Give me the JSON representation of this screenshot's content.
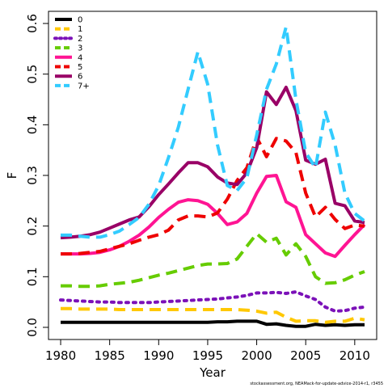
{
  "footer_text": "stockassessment.org, NEAMack-for-update-advice-2014-r1, r3455",
  "chart_data": {
    "type": "line",
    "title": "",
    "xlabel": "Year",
    "ylabel": "F",
    "xlim": [
      1980,
      2011
    ],
    "ylim": [
      0,
      0.6
    ],
    "x_ticks": [
      1980,
      1985,
      1990,
      1995,
      2000,
      2005,
      2010
    ],
    "y_ticks": [
      0.0,
      0.1,
      0.2,
      0.3,
      0.4,
      0.5,
      0.6
    ],
    "x_tick_labels": [
      "1980",
      "1985",
      "1990",
      "1995",
      "2000",
      "2005",
      "2010"
    ],
    "y_tick_labels": [
      "0.0",
      "0.1",
      "0.2",
      "0.3",
      "0.4",
      "0.5",
      "0.6"
    ],
    "grid": false,
    "legend_position": "top-left",
    "x": [
      1980,
      1981,
      1982,
      1983,
      1984,
      1985,
      1986,
      1987,
      1988,
      1989,
      1990,
      1991,
      1992,
      1993,
      1994,
      1995,
      1996,
      1997,
      1998,
      1999,
      2000,
      2001,
      2002,
      2003,
      2004,
      2005,
      2006,
      2007,
      2008,
      2009,
      2010,
      2011
    ],
    "series": [
      {
        "name": "0",
        "color": "#000000",
        "dash": "solid",
        "values": [
          0.01,
          0.01,
          0.01,
          0.01,
          0.01,
          0.01,
          0.01,
          0.01,
          0.01,
          0.01,
          0.01,
          0.01,
          0.01,
          0.01,
          0.01,
          0.01,
          0.011,
          0.011,
          0.012,
          0.012,
          0.012,
          0.006,
          0.007,
          0.004,
          0.002,
          0.002,
          0.006,
          0.004,
          0.005,
          0.004,
          0.005,
          0.005
        ]
      },
      {
        "name": "1",
        "color": "#ffc800",
        "dash": "dashed",
        "values": [
          0.037,
          0.037,
          0.036,
          0.036,
          0.036,
          0.036,
          0.035,
          0.035,
          0.035,
          0.035,
          0.035,
          0.035,
          0.035,
          0.035,
          0.035,
          0.035,
          0.035,
          0.035,
          0.035,
          0.034,
          0.032,
          0.028,
          0.03,
          0.02,
          0.012,
          0.013,
          0.013,
          0.01,
          0.012,
          0.012,
          0.018,
          0.015
        ]
      },
      {
        "name": "2",
        "color": "#7b11b8",
        "dash": "dotted",
        "values": [
          0.054,
          0.053,
          0.052,
          0.051,
          0.05,
          0.05,
          0.049,
          0.049,
          0.049,
          0.049,
          0.05,
          0.051,
          0.052,
          0.053,
          0.054,
          0.055,
          0.056,
          0.058,
          0.06,
          0.063,
          0.068,
          0.068,
          0.069,
          0.067,
          0.07,
          0.062,
          0.055,
          0.04,
          0.032,
          0.033,
          0.038,
          0.04
        ]
      },
      {
        "name": "3",
        "color": "#66cc00",
        "dash": "dashed",
        "values": [
          0.082,
          0.082,
          0.081,
          0.081,
          0.082,
          0.085,
          0.087,
          0.089,
          0.093,
          0.098,
          0.103,
          0.107,
          0.112,
          0.117,
          0.122,
          0.125,
          0.125,
          0.126,
          0.135,
          0.16,
          0.185,
          0.168,
          0.176,
          0.143,
          0.165,
          0.14,
          0.1,
          0.087,
          0.088,
          0.094,
          0.103,
          0.11
        ]
      },
      {
        "name": "4",
        "color": "#ff1493",
        "dash": "solid",
        "values": [
          0.145,
          0.145,
          0.145,
          0.146,
          0.148,
          0.153,
          0.16,
          0.17,
          0.182,
          0.198,
          0.217,
          0.233,
          0.247,
          0.252,
          0.25,
          0.243,
          0.225,
          0.203,
          0.208,
          0.225,
          0.265,
          0.298,
          0.3,
          0.248,
          0.237,
          0.183,
          0.165,
          0.147,
          0.14,
          0.162,
          0.183,
          0.203
        ]
      },
      {
        "name": "5",
        "color": "#ee0000",
        "dash": "dashed",
        "values": [
          0.145,
          0.145,
          0.146,
          0.148,
          0.15,
          0.155,
          0.16,
          0.165,
          0.172,
          0.178,
          0.183,
          0.192,
          0.212,
          0.22,
          0.22,
          0.218,
          0.226,
          0.253,
          0.29,
          0.315,
          0.375,
          0.337,
          0.373,
          0.368,
          0.345,
          0.265,
          0.218,
          0.237,
          0.213,
          0.195,
          0.202,
          0.2
        ]
      },
      {
        "name": "6",
        "color": "#990066",
        "dash": "solid",
        "values": [
          0.177,
          0.178,
          0.18,
          0.183,
          0.188,
          0.196,
          0.204,
          0.212,
          0.218,
          0.238,
          0.262,
          0.283,
          0.305,
          0.325,
          0.325,
          0.317,
          0.297,
          0.285,
          0.282,
          0.305,
          0.355,
          0.465,
          0.44,
          0.474,
          0.428,
          0.33,
          0.322,
          0.332,
          0.245,
          0.24,
          0.21,
          0.207
        ]
      },
      {
        "name": "7+",
        "color": "#33ccff",
        "dash": "dashed",
        "values": [
          0.182,
          0.182,
          0.18,
          0.178,
          0.178,
          0.183,
          0.19,
          0.203,
          0.217,
          0.243,
          0.28,
          0.335,
          0.395,
          0.47,
          0.544,
          0.48,
          0.36,
          0.28,
          0.27,
          0.295,
          0.38,
          0.47,
          0.52,
          0.593,
          0.45,
          0.345,
          0.315,
          0.425,
          0.36,
          0.265,
          0.225,
          0.21
        ]
      }
    ]
  }
}
